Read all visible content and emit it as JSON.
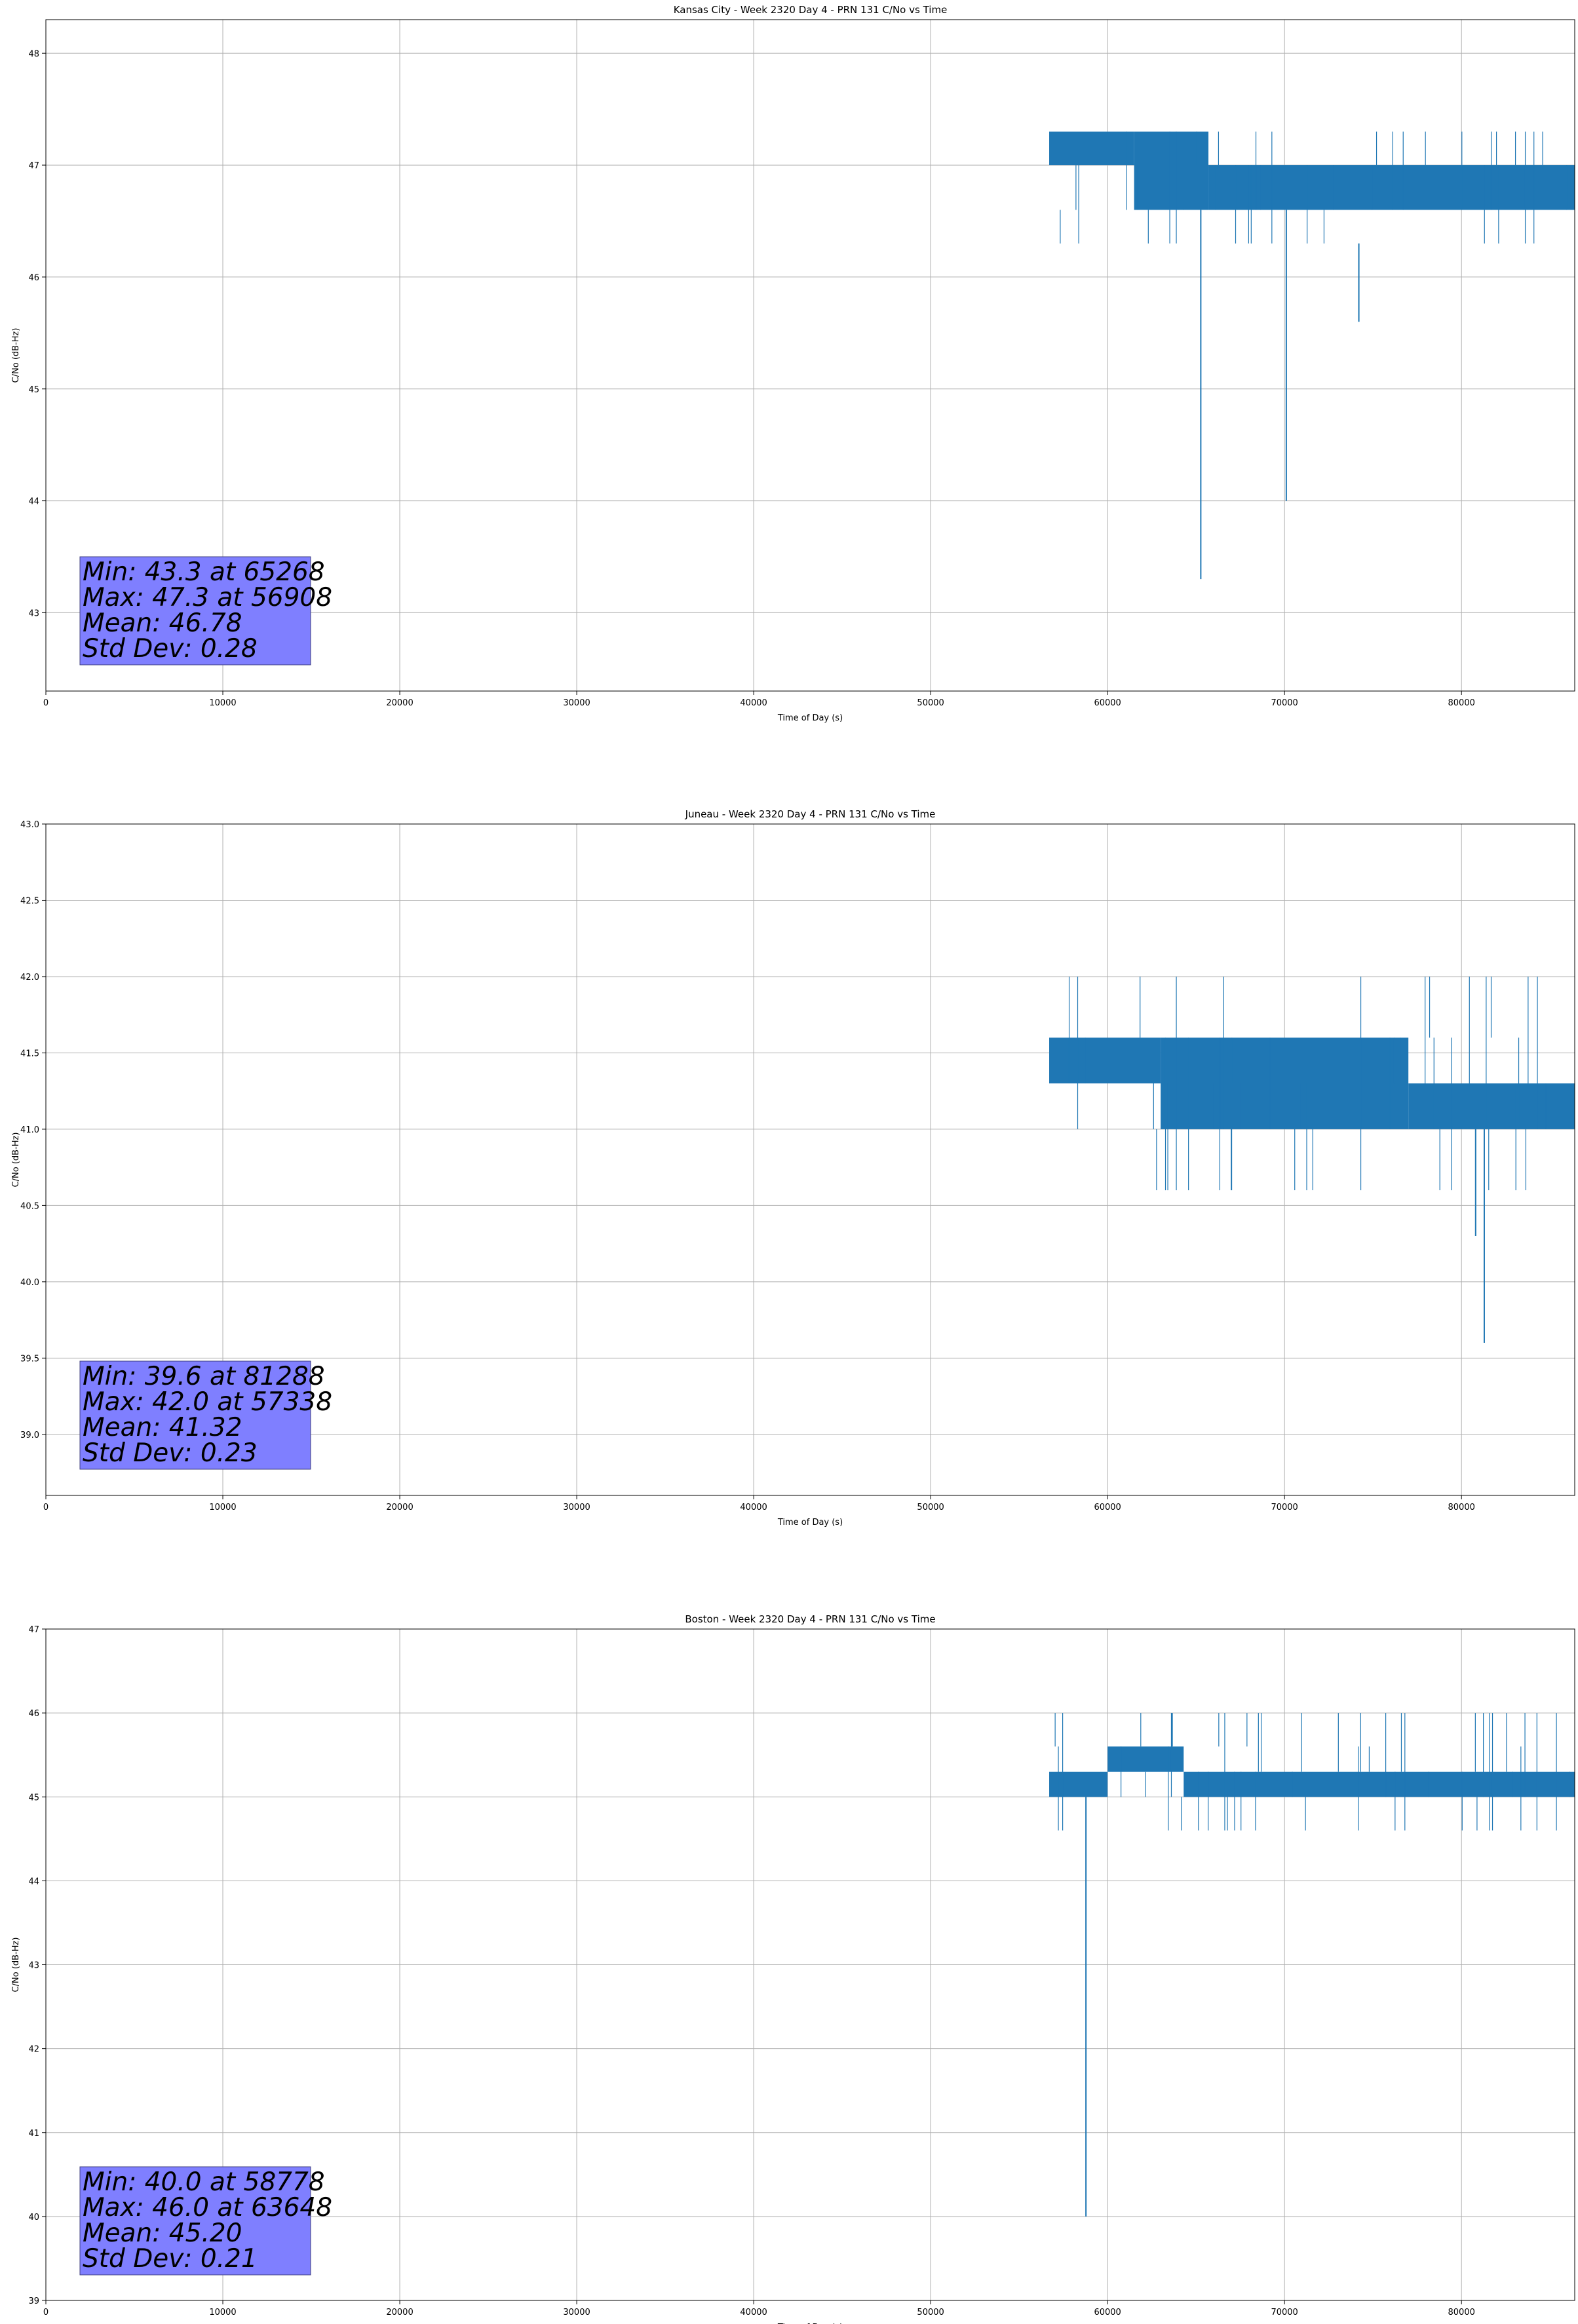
{
  "chart_data": [
    {
      "type": "line",
      "title": "Kansas City - Week 2320 Day 4 - PRN 131 C/No vs Time",
      "xlabel": "Time of Day (s)",
      "ylabel": "C/No (dB-Hz)",
      "xlim": [
        0,
        86400
      ],
      "ylim": [
        42.3,
        48.3
      ],
      "xticks": [
        0,
        10000,
        20000,
        30000,
        40000,
        50000,
        60000,
        70000,
        80000
      ],
      "yticks": [
        43,
        44,
        45,
        46,
        47,
        48
      ],
      "ytick_decimals": 0,
      "grid": true,
      "color": "#1f77b4",
      "series_start": 56700,
      "levels": [
        47.3,
        47.0,
        46.6,
        46.3
      ],
      "segments": [
        {
          "x0": 56700,
          "x1": 61500,
          "top": 47.3,
          "bottom": 47.0
        },
        {
          "x0": 61500,
          "x1": 65700,
          "top": 47.3,
          "bottom": 46.6
        },
        {
          "x0": 65700,
          "x1": 86400,
          "top": 47.0,
          "bottom": 46.6
        }
      ],
      "spikes": [
        {
          "x": 65268,
          "top": 46.6,
          "bottom": 43.3
        },
        {
          "x": 70100,
          "top": 46.6,
          "bottom": 44.0
        },
        {
          "x": 74200,
          "top": 46.3,
          "bottom": 45.6
        }
      ],
      "stats": {
        "min": "Min: 43.3 at 65268",
        "max": "Max: 47.3 at 56908",
        "mean": "Mean: 46.78",
        "std": "Std Dev: 0.28"
      }
    },
    {
      "type": "line",
      "title": "Juneau - Week 2320 Day 4 - PRN 131 C/No vs Time",
      "xlabel": "Time of Day (s)",
      "ylabel": "C/No (dB-Hz)",
      "xlim": [
        0,
        86400
      ],
      "ylim": [
        38.6,
        43.0
      ],
      "xticks": [
        0,
        10000,
        20000,
        30000,
        40000,
        50000,
        60000,
        70000,
        80000
      ],
      "yticks": [
        39.0,
        39.5,
        40.0,
        40.5,
        41.0,
        41.5,
        42.0,
        42.5,
        43.0
      ],
      "ytick_decimals": 1,
      "grid": true,
      "color": "#1f77b4",
      "series_start": 56700,
      "levels": [
        42.0,
        41.6,
        41.3,
        41.0,
        40.6
      ],
      "segments": [
        {
          "x0": 56700,
          "x1": 63000,
          "top": 41.6,
          "bottom": 41.3
        },
        {
          "x0": 63000,
          "x1": 77000,
          "top": 41.6,
          "bottom": 41.0
        },
        {
          "x0": 77000,
          "x1": 86400,
          "top": 41.3,
          "bottom": 41.0
        }
      ],
      "spikes": [
        {
          "x": 67000,
          "top": 41.0,
          "bottom": 40.6
        },
        {
          "x": 81288,
          "top": 41.0,
          "bottom": 39.6
        },
        {
          "x": 80800,
          "top": 41.0,
          "bottom": 40.3
        }
      ],
      "stats": {
        "min": "Min: 39.6 at 81288",
        "max": "Max: 42.0 at 57338",
        "mean": "Mean: 41.32",
        "std": "Std Dev: 0.23"
      }
    },
    {
      "type": "line",
      "title": "Boston - Week 2320 Day 4 - PRN 131 C/No vs Time",
      "xlabel": "Time of Day (s)",
      "ylabel": "C/No (dB-Hz)",
      "xlim": [
        0,
        86400
      ],
      "ylim": [
        39,
        47
      ],
      "xticks": [
        0,
        10000,
        20000,
        30000,
        40000,
        50000,
        60000,
        70000,
        80000
      ],
      "yticks": [
        39,
        40,
        41,
        42,
        43,
        44,
        45,
        46,
        47
      ],
      "ytick_decimals": 0,
      "grid": true,
      "color": "#1f77b4",
      "series_start": 56700,
      "levels": [
        46.0,
        45.6,
        45.3,
        45.0,
        44.6
      ],
      "segments": [
        {
          "x0": 56700,
          "x1": 60000,
          "top": 45.3,
          "bottom": 45.0
        },
        {
          "x0": 60000,
          "x1": 64300,
          "top": 45.6,
          "bottom": 45.3
        },
        {
          "x0": 64300,
          "x1": 86400,
          "top": 45.3,
          "bottom": 45.0
        }
      ],
      "spikes": [
        {
          "x": 58778,
          "top": 45.0,
          "bottom": 40.0
        },
        {
          "x": 63648,
          "top": 46.0,
          "bottom": 45.6
        }
      ],
      "stats": {
        "min": "Min: 40.0 at 58778",
        "max": "Max: 46.0 at 63648",
        "mean": "Mean: 45.20",
        "std": "Std Dev: 0.21"
      }
    }
  ]
}
